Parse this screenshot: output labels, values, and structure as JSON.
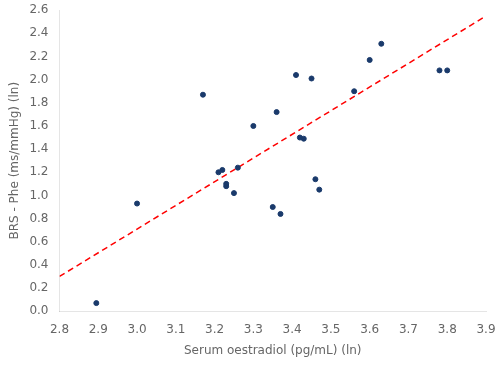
{
  "chart_data": {
    "type": "scatter",
    "xlabel": "Serum oestradiol (pg/mL) (ln)",
    "ylabel": "BRS - Phe (ms/mmHg) (ln)",
    "series": [
      {
        "type": "scatter",
        "color": "#1a3a6b",
        "marker": "circle",
        "x": [
          2.895,
          3.0,
          3.17,
          3.21,
          3.22,
          3.23,
          3.23,
          3.25,
          3.26,
          3.3,
          3.35,
          3.36,
          3.37,
          3.41,
          3.42,
          3.43,
          3.45,
          3.46,
          3.47,
          3.56,
          3.6,
          3.63,
          3.78,
          3.8
        ],
        "values": [
          0.07,
          0.93,
          1.87,
          1.2,
          1.22,
          1.08,
          1.1,
          1.02,
          1.24,
          1.6,
          0.9,
          1.72,
          0.84,
          2.04,
          1.5,
          1.49,
          2.01,
          1.14,
          1.05,
          1.9,
          2.17,
          2.31,
          2.08,
          2.08
        ]
      },
      {
        "type": "line",
        "color": "#FF0000",
        "line_style": "dashed",
        "x": [
          2.8,
          3.9
        ],
        "values": [
          0.3,
          2.55
        ]
      }
    ],
    "xlim": [
      2.8,
      3.9
    ],
    "ylim": [
      0.0,
      2.6
    ],
    "xticks": [
      2.8,
      2.9,
      {
        "value": 3.0,
        "label": "3.0"
      },
      3.1,
      3.2,
      3.3,
      3.4,
      3.5,
      3.6,
      3.7,
      3.8,
      3.9
    ],
    "yticks": [
      {
        "value": 0.0,
        "label": "0.0"
      },
      0.2,
      0.4,
      0.6,
      0.8,
      {
        "value": 1.0,
        "label": "1.0"
      },
      1.2,
      1.4,
      1.6,
      1.8,
      {
        "value": 2.0,
        "label": "2.0"
      },
      2.2,
      2.4,
      2.6
    ],
    "grid": false
  }
}
